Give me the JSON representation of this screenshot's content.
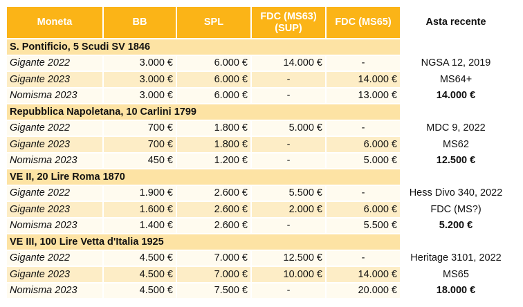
{
  "headers": [
    "Moneta",
    "BB",
    "SPL",
    "FDC (MS63)\n(SUP)",
    "FDC (MS65)",
    "Asta recente"
  ],
  "groups": [
    {
      "title": "S. Pontificio, 5 Scudi SV 1846",
      "rows": [
        {
          "source": "Gigante 2022",
          "bb": "3.000 €",
          "spl": "6.000 €",
          "fdc63": "14.000 €",
          "fdc65": "-",
          "auction": "NGSA 12, 2019"
        },
        {
          "source": "Gigante 2023",
          "bb": "3.000 €",
          "spl": "6.000 €",
          "fdc63": "-",
          "fdc65": "14.000 €",
          "auction": "MS64+"
        },
        {
          "source": "Nomisma 2023",
          "bb": "3.000 €",
          "spl": "6.000 €",
          "fdc63": "-",
          "fdc65": "13.000 €",
          "auction": "14.000 €"
        }
      ]
    },
    {
      "title": "Repubblica Napoletana, 10 Carlini 1799",
      "rows": [
        {
          "source": "Gigante 2022",
          "bb": "700 €",
          "spl": "1.800 €",
          "fdc63": "5.000 €",
          "fdc65": "-",
          "auction": "MDC 9, 2022"
        },
        {
          "source": "Gigante 2023",
          "bb": "700 €",
          "spl": "1.800 €",
          "fdc63": "-",
          "fdc65": "6.000 €",
          "auction": "MS62"
        },
        {
          "source": "Nomisma 2023",
          "bb": "450 €",
          "spl": "1.200 €",
          "fdc63": "-",
          "fdc65": "5.000 €",
          "auction": "12.500 €"
        }
      ]
    },
    {
      "title": "VE II, 20 Lire Roma 1870",
      "rows": [
        {
          "source": "Gigante 2022",
          "bb": "1.900 €",
          "spl": "2.600 €",
          "fdc63": "5.500 €",
          "fdc65": "-",
          "auction": "Hess Divo 340, 2022"
        },
        {
          "source": "Gigante 2023",
          "bb": "1.600 €",
          "spl": "2.600 €",
          "fdc63": "2.000 €",
          "fdc65": "6.000 €",
          "auction": "FDC (MS?)"
        },
        {
          "source": "Nomisma 2023",
          "bb": "1.400 €",
          "spl": "2.600 €",
          "fdc63": "-",
          "fdc65": "5.500 €",
          "auction": "5.200 €"
        }
      ]
    },
    {
      "title": "VE III, 100 Lire Vetta d'Italia 1925",
      "rows": [
        {
          "source": "Gigante 2022",
          "bb": "4.500 €",
          "spl": "7.000 €",
          "fdc63": "12.500 €",
          "fdc65": "-",
          "auction": "Heritage 3101, 2022"
        },
        {
          "source": "Gigante 2023",
          "bb": "4.500 €",
          "spl": "7.000 €",
          "fdc63": "10.000 €",
          "fdc65": "14.000 €",
          "auction": "MS65"
        },
        {
          "source": "Nomisma 2023",
          "bb": "4.500 €",
          "spl": "7.500 €",
          "fdc63": "-",
          "fdc65": "20.000 €",
          "auction": "18.000 €"
        }
      ]
    }
  ],
  "colors": {
    "header": "#fbb417",
    "group_row": "#fde3a4",
    "row_light": "#fffbef",
    "row_dark": "#fdedc6"
  }
}
